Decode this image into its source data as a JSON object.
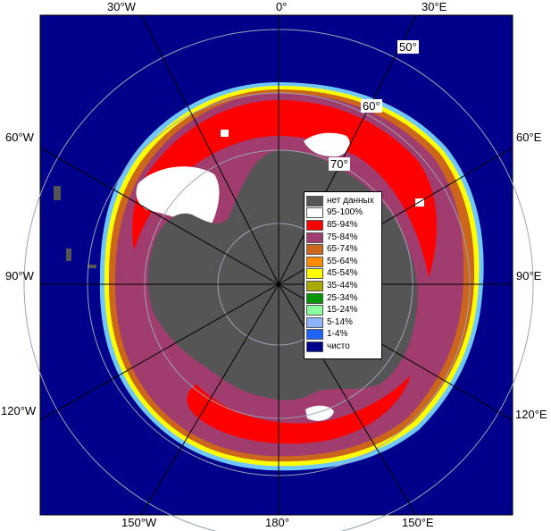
{
  "map": {
    "longitude_labels": {
      "top_left": "30°W",
      "top_center": "0°",
      "top_right": "30°E",
      "left_upper": "60°W",
      "left_middle": "90°W",
      "left_lower": "120°W",
      "right_upper": "60°E",
      "right_middle": "90°E",
      "right_lower": "120°E",
      "bottom_left": "150°W",
      "bottom_center": "180°",
      "bottom_right": "150°E"
    },
    "latitude_labels": {
      "lat50": "50°",
      "lat60": "60°",
      "lat70": "70°"
    },
    "colors": {
      "ocean": "#00008b",
      "land_no_data": "#555555",
      "ice_95_100": "#ffffff",
      "ice_85_94": "#ff0000",
      "ice_75_84": "#a03c6e",
      "ice_65_74": "#cd661d",
      "ice_55_64": "#ff8c00",
      "edge_cyan": "#6ec8ff",
      "edge_yellow": "#ffff00",
      "grid": "#9aa3b5"
    }
  },
  "legend": {
    "items": [
      {
        "label": "нет данных",
        "color": "#555555"
      },
      {
        "label": "95-100%",
        "color": "#ffffff"
      },
      {
        "label": "85-94%",
        "color": "#ff0000"
      },
      {
        "label": "75-84%",
        "color": "#a03c6e"
      },
      {
        "label": "65-74%",
        "color": "#cd661d"
      },
      {
        "label": "55-64%",
        "color": "#ff8c00"
      },
      {
        "label": "45-54%",
        "color": "#ffff00"
      },
      {
        "label": "35-44%",
        "color": "#a8a800"
      },
      {
        "label": "25-34%",
        "color": "#009600"
      },
      {
        "label": "15-24%",
        "color": "#8cffa0"
      },
      {
        "label": "5-14%",
        "color": "#8cb4ff"
      },
      {
        "label": "1-4%",
        "color": "#1e64ff"
      },
      {
        "label": "чисто",
        "color": "#00008b"
      }
    ]
  }
}
